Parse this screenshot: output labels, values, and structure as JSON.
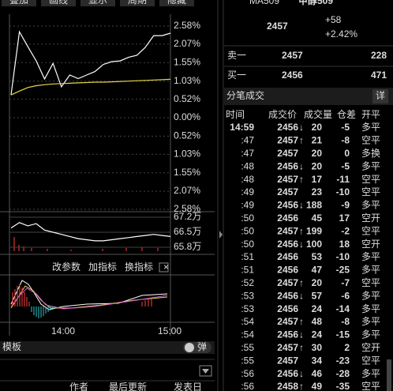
{
  "left_panel": {
    "tabs": [
      "叠加",
      "画线",
      "显示",
      "周期",
      "隐藏"
    ],
    "price_chart": {
      "type": "line",
      "ylim": [
        -2.58,
        2.58
      ],
      "yticks": [
        {
          "value": 2.58,
          "label": "2.58%"
        },
        {
          "value": 2.07,
          "label": "2.07%"
        },
        {
          "value": 1.55,
          "label": "1.55%"
        },
        {
          "value": 1.03,
          "label": "1.03%"
        },
        {
          "value": 0.52,
          "label": "0.52%"
        },
        {
          "value": 0,
          "label": "0.00%"
        },
        {
          "value": -0.52,
          "label": "0.52%"
        },
        {
          "value": -1.03,
          "label": "1.03%"
        },
        {
          "value": -1.55,
          "label": "1.55%"
        },
        {
          "value": -2.07,
          "label": "2.07%"
        },
        {
          "value": -2.58,
          "label": "2.58%"
        }
      ],
      "series": [
        {
          "color": "#ffffff",
          "values": [
            0.64,
            2.42,
            2.0,
            1.6,
            1.09,
            1.53,
            0.87,
            1.2,
            1.1,
            1.2,
            1.3,
            1.5,
            1.58,
            1.6,
            1.7,
            1.76,
            1.98,
            2.31,
            2.31,
            2.38
          ]
        },
        {
          "color": "#e6d64a",
          "values": [
            0.64,
            0.75,
            0.85,
            0.9,
            0.93,
            0.95,
            0.96,
            0.97,
            0.98,
            0.99,
            1.0,
            1.0,
            1.01,
            1.02,
            1.03,
            1.04,
            1.05,
            1.06,
            1.07,
            1.08
          ]
        }
      ]
    },
    "volume_chart": {
      "type": "line",
      "ylim": [
        65.8,
        67.2
      ],
      "yticks": [
        {
          "value": 67.2,
          "label": "67.2万"
        },
        {
          "value": 66.5,
          "label": "66.5万"
        },
        {
          "value": 65.8,
          "label": "65.8万"
        }
      ],
      "series": [
        {
          "color": "#ffffff",
          "values": [
            66.7,
            66.95,
            66.8,
            66.9,
            66.6,
            66.5,
            66.4,
            66.3,
            66.2,
            66.15,
            66.1,
            66.1,
            66.15,
            66.2,
            66.25,
            66.3,
            66.35,
            66.4,
            66.35,
            66.3
          ]
        }
      ]
    },
    "indicator_buttons": [
      "改参数",
      "加指标",
      "换指标",
      "×"
    ],
    "time_labels": [
      "14:00",
      "15:00"
    ],
    "toolbar": {
      "template": "模板",
      "toggle": "弹"
    },
    "footer": [
      "作者",
      "最后更新",
      "发表日"
    ]
  },
  "quote": {
    "symbol": "MA509",
    "name": "甲醇509",
    "price": "2457",
    "change": "+58",
    "change_pct": "+2.42%",
    "book": [
      {
        "label": "卖一",
        "price": "2457",
        "volume": "228"
      },
      {
        "label": "买一",
        "price": "2456",
        "volume": "471"
      }
    ],
    "ticks_title": "分笔成交",
    "detail_button": "详",
    "columns": [
      "时间",
      "成交价",
      "成交量",
      "仓差",
      "开平"
    ],
    "rows": [
      {
        "time": "14:59",
        "price": 2456,
        "arrow": "↓",
        "volume": 20,
        "diff": -5,
        "kind": "多平"
      },
      {
        "time": ":47",
        "price": 2457,
        "arrow": "↑",
        "volume": 21,
        "diff": -8,
        "kind": "空平"
      },
      {
        "time": ":47",
        "price": 2457,
        "volume": 20,
        "diff": 0,
        "kind": "多换"
      },
      {
        "time": ":48",
        "price": 2456,
        "arrow": "↓",
        "volume": 20,
        "diff": -5,
        "kind": "多平"
      },
      {
        "time": ":48",
        "price": 2457,
        "arrow": "↑",
        "volume": 17,
        "diff": -11,
        "kind": "空平"
      },
      {
        "time": ":49",
        "price": 2457,
        "volume": 23,
        "diff": -10,
        "kind": "空平"
      },
      {
        "time": ":49",
        "price": 2456,
        "arrow": "↓",
        "volume": 188,
        "diff": -9,
        "kind": "多平"
      },
      {
        "time": ":50",
        "price": 2456,
        "volume": 45,
        "diff": 17,
        "kind": "空开"
      },
      {
        "time": ":50",
        "price": 2457,
        "arrow": "↑",
        "volume": 199,
        "diff": -2,
        "kind": "空平"
      },
      {
        "time": ":50",
        "price": 2456,
        "arrow": "↓",
        "volume": 100,
        "diff": 18,
        "kind": "空开"
      },
      {
        "time": ":51",
        "price": 2456,
        "volume": 53,
        "diff": -10,
        "kind": "多平"
      },
      {
        "time": ":51",
        "price": 2456,
        "volume": 47,
        "diff": -25,
        "kind": "多平"
      },
      {
        "time": ":52",
        "price": 2457,
        "arrow": "↑",
        "volume": 20,
        "diff": -7,
        "kind": "空平"
      },
      {
        "time": ":53",
        "price": 2456,
        "arrow": "↓",
        "volume": 57,
        "diff": -6,
        "kind": "多平"
      },
      {
        "time": ":53",
        "price": 2456,
        "volume": 24,
        "diff": -14,
        "kind": "多平"
      },
      {
        "time": ":54",
        "price": 2457,
        "arrow": "↑",
        "volume": 48,
        "diff": -8,
        "kind": "多平"
      },
      {
        "time": ":54",
        "price": 2456,
        "arrow": "↓",
        "volume": 24,
        "diff": -15,
        "kind": "多平"
      },
      {
        "time": ":55",
        "price": 2457,
        "arrow": "↑",
        "volume": 30,
        "diff": 2,
        "kind": "空开"
      },
      {
        "time": ":55",
        "price": 2457,
        "volume": 34,
        "diff": -23,
        "kind": "空平"
      },
      {
        "time": ":56",
        "price": 2456,
        "arrow": "↓",
        "volume": 46,
        "diff": -28,
        "kind": "多平"
      },
      {
        "time": ":56",
        "price": 2458,
        "arrow": "↑",
        "volume": 49,
        "diff": -35,
        "kind": "空平"
      }
    ]
  }
}
